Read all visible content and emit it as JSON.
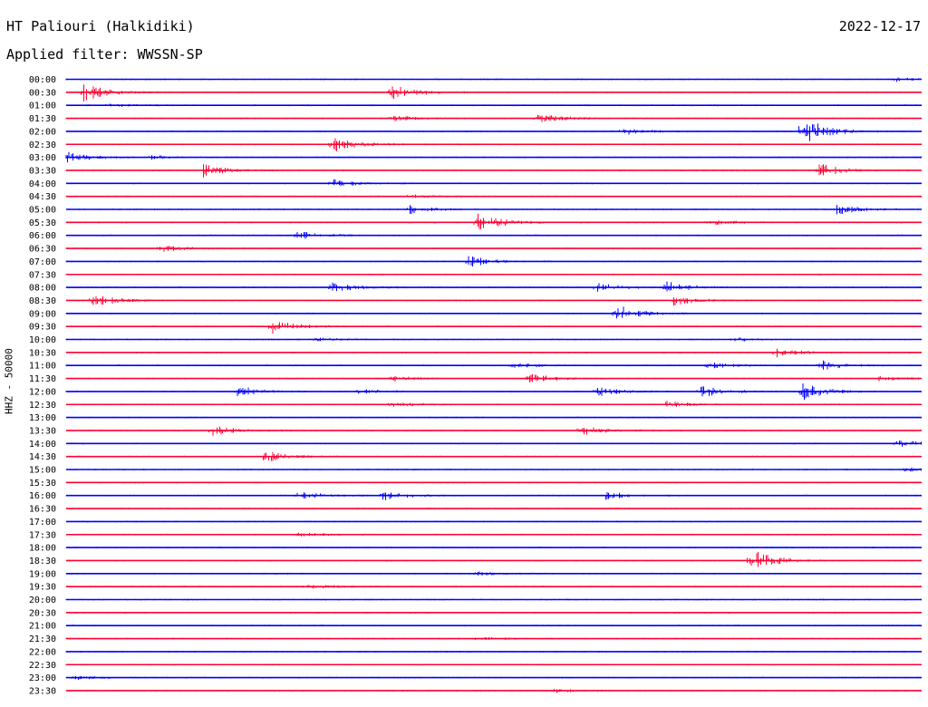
{
  "header": {
    "station": "HT Paliouri (Halkidiki)",
    "date": "2022-12-17",
    "filter_label": "Applied filter: WWSSN-SP"
  },
  "chart_data": {
    "type": "line",
    "title": "HT Paliouri (Halkidiki)",
    "ylabel": "HHZ - 50000",
    "trace_colors": [
      "#0000ff",
      "#ff0033"
    ],
    "rows": [
      {
        "label": "00:00",
        "events": [
          {
            "t": 0.97,
            "amp": 2
          }
        ]
      },
      {
        "label": "00:30",
        "events": [
          {
            "t": 0.02,
            "amp": 10
          },
          {
            "t": 0.38,
            "amp": 9
          }
        ]
      },
      {
        "label": "01:00",
        "events": [
          {
            "t": 0.05,
            "amp": 2
          }
        ]
      },
      {
        "label": "01:30",
        "events": [
          {
            "t": 0.38,
            "amp": 3
          },
          {
            "t": 0.55,
            "amp": 5
          }
        ]
      },
      {
        "label": "02:00",
        "events": [
          {
            "t": 0.65,
            "amp": 4
          },
          {
            "t": 0.86,
            "amp": 18
          }
        ]
      },
      {
        "label": "02:30",
        "events": [
          {
            "t": 0.31,
            "amp": 11
          }
        ]
      },
      {
        "label": "03:00",
        "events": [
          {
            "t": 0.0,
            "amp": 6
          },
          {
            "t": 0.1,
            "amp": 2
          }
        ]
      },
      {
        "label": "03:30",
        "events": [
          {
            "t": 0.16,
            "amp": 7
          },
          {
            "t": 0.88,
            "amp": 8
          }
        ]
      },
      {
        "label": "04:00",
        "events": [
          {
            "t": 0.31,
            "amp": 5
          }
        ]
      },
      {
        "label": "04:30",
        "events": [
          {
            "t": 0.4,
            "amp": 2
          }
        ]
      },
      {
        "label": "05:00",
        "events": [
          {
            "t": 0.4,
            "amp": 5
          },
          {
            "t": 0.9,
            "amp": 6
          }
        ]
      },
      {
        "label": "05:30",
        "events": [
          {
            "t": 0.48,
            "amp": 12
          },
          {
            "t": 0.75,
            "amp": 3
          }
        ]
      },
      {
        "label": "06:00",
        "events": [
          {
            "t": 0.27,
            "amp": 5
          }
        ]
      },
      {
        "label": "06:30",
        "events": [
          {
            "t": 0.11,
            "amp": 4
          }
        ]
      },
      {
        "label": "07:00",
        "events": [
          {
            "t": 0.47,
            "amp": 6
          }
        ]
      },
      {
        "label": "07:30",
        "events": []
      },
      {
        "label": "08:00",
        "events": [
          {
            "t": 0.31,
            "amp": 7
          },
          {
            "t": 0.62,
            "amp": 6
          },
          {
            "t": 0.7,
            "amp": 9
          }
        ]
      },
      {
        "label": "08:30",
        "events": [
          {
            "t": 0.03,
            "amp": 8
          },
          {
            "t": 0.71,
            "amp": 5
          }
        ]
      },
      {
        "label": "09:00",
        "events": [
          {
            "t": 0.64,
            "amp": 11
          }
        ]
      },
      {
        "label": "09:30",
        "events": [
          {
            "t": 0.24,
            "amp": 8
          }
        ]
      },
      {
        "label": "10:00",
        "events": [
          {
            "t": 0.29,
            "amp": 2
          },
          {
            "t": 0.78,
            "amp": 2
          }
        ]
      },
      {
        "label": "10:30",
        "events": [
          {
            "t": 0.83,
            "amp": 5
          }
        ]
      },
      {
        "label": "11:00",
        "events": [
          {
            "t": 0.52,
            "amp": 4
          },
          {
            "t": 0.75,
            "amp": 4
          },
          {
            "t": 0.88,
            "amp": 6
          }
        ]
      },
      {
        "label": "11:30",
        "events": [
          {
            "t": 0.38,
            "amp": 3
          },
          {
            "t": 0.54,
            "amp": 6
          },
          {
            "t": 0.95,
            "amp": 3
          }
        ]
      },
      {
        "label": "12:00",
        "events": [
          {
            "t": 0.2,
            "amp": 6
          },
          {
            "t": 0.34,
            "amp": 3
          },
          {
            "t": 0.62,
            "amp": 5
          },
          {
            "t": 0.74,
            "amp": 7
          },
          {
            "t": 0.86,
            "amp": 10
          }
        ]
      },
      {
        "label": "12:30",
        "events": [
          {
            "t": 0.38,
            "amp": 3
          },
          {
            "t": 0.7,
            "amp": 4
          }
        ]
      },
      {
        "label": "13:00",
        "events": []
      },
      {
        "label": "13:30",
        "events": [
          {
            "t": 0.17,
            "amp": 6
          },
          {
            "t": 0.6,
            "amp": 6
          }
        ]
      },
      {
        "label": "14:00",
        "events": [
          {
            "t": 0.97,
            "amp": 5
          }
        ]
      },
      {
        "label": "14:30",
        "events": [
          {
            "t": 0.23,
            "amp": 7
          }
        ]
      },
      {
        "label": "15:00",
        "events": [
          {
            "t": 0.98,
            "amp": 2
          }
        ]
      },
      {
        "label": "15:30",
        "events": []
      },
      {
        "label": "16:00",
        "events": [
          {
            "t": 0.27,
            "amp": 5
          },
          {
            "t": 0.37,
            "amp": 6
          },
          {
            "t": 0.63,
            "amp": 5
          }
        ]
      },
      {
        "label": "16:30",
        "events": []
      },
      {
        "label": "17:00",
        "events": []
      },
      {
        "label": "17:30",
        "events": [
          {
            "t": 0.27,
            "amp": 2
          }
        ]
      },
      {
        "label": "18:00",
        "events": []
      },
      {
        "label": "18:30",
        "events": [
          {
            "t": 0.8,
            "amp": 14
          }
        ]
      },
      {
        "label": "19:00",
        "events": [
          {
            "t": 0.48,
            "amp": 2
          }
        ]
      },
      {
        "label": "19:30",
        "events": [
          {
            "t": 0.28,
            "amp": 3
          }
        ]
      },
      {
        "label": "20:00",
        "events": []
      },
      {
        "label": "20:30",
        "events": []
      },
      {
        "label": "21:00",
        "events": []
      },
      {
        "label": "21:30",
        "events": [
          {
            "t": 0.48,
            "amp": 2
          }
        ]
      },
      {
        "label": "22:00",
        "events": []
      },
      {
        "label": "22:30",
        "events": []
      },
      {
        "label": "23:00",
        "events": [
          {
            "t": 0.01,
            "amp": 2
          }
        ]
      },
      {
        "label": "23:30",
        "events": [
          {
            "t": 0.57,
            "amp": 2
          }
        ]
      }
    ]
  }
}
